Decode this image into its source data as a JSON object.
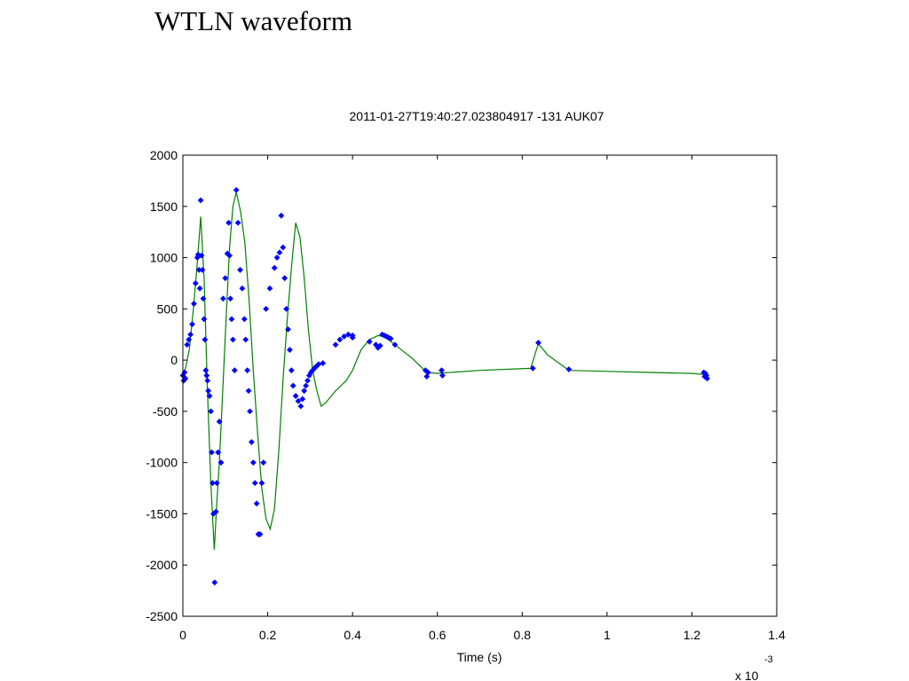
{
  "slide": {
    "title": "WTLN waveform"
  },
  "chart_data": {
    "type": "line",
    "title": "2011-01-27T19:40:27.023804917   -131  AUK07",
    "xlabel": "Time (s)",
    "ylabel": "",
    "x_exponent_label": "x 10",
    "x_exponent_power": "-3",
    "xlim": [
      0,
      1.4
    ],
    "ylim": [
      -2500,
      2000
    ],
    "xticks": [
      0,
      0.2,
      0.4,
      0.6,
      0.8,
      1,
      1.2,
      1.4
    ],
    "xtick_labels": [
      "0",
      "0.2",
      "0.4",
      "0.6",
      "0.8",
      "1",
      "1.2",
      "1.4"
    ],
    "yticks": [
      2000,
      1500,
      1000,
      500,
      0,
      -500,
      -1000,
      -1500,
      -2000,
      -2500
    ],
    "ytick_labels": [
      "2000",
      "1500",
      "1000",
      "500",
      "0",
      "-500",
      "-1000",
      "-1500",
      "-2000",
      "-2500"
    ],
    "grid": false,
    "legend": "none",
    "colors": {
      "line": "#008000",
      "markers": "#0000ff"
    },
    "series": [
      {
        "style": "line",
        "x": [
          0,
          0.005,
          0.015,
          0.025,
          0.035,
          0.042,
          0.05,
          0.058,
          0.066,
          0.074,
          0.08,
          0.086,
          0.094,
          0.102,
          0.11,
          0.118,
          0.126,
          0.136,
          0.146,
          0.156,
          0.166,
          0.176,
          0.186,
          0.196,
          0.206,
          0.216,
          0.226,
          0.236,
          0.246,
          0.256,
          0.266,
          0.276,
          0.286,
          0.296,
          0.306,
          0.316,
          0.326,
          0.336,
          0.36,
          0.385,
          0.4,
          0.42,
          0.44,
          0.46,
          0.475,
          0.5,
          0.54,
          0.575,
          0.6,
          0.7,
          0.82,
          0.838,
          0.86,
          0.91,
          1.0,
          1.1,
          1.2,
          1.23
        ],
        "y": [
          -200,
          -100,
          100,
          500,
          1000,
          1400,
          800,
          -300,
          -1200,
          -1850,
          -1400,
          -1000,
          -300,
          400,
          1100,
          1500,
          1640,
          1450,
          1150,
          600,
          -100,
          -700,
          -1250,
          -1550,
          -1650,
          -1450,
          -900,
          -200,
          400,
          900,
          1340,
          1200,
          800,
          300,
          -100,
          -300,
          -450,
          -420,
          -300,
          -200,
          -100,
          100,
          200,
          240,
          230,
          150,
          20,
          -120,
          -130,
          -100,
          -80,
          160,
          50,
          -100,
          -110,
          -120,
          -130,
          -140
        ]
      },
      {
        "style": "markers",
        "x": [
          0,
          0.002,
          0.004,
          0.006,
          0.01,
          0.014,
          0.018,
          0.022,
          0.026,
          0.03,
          0.034,
          0.036,
          0.038,
          0.04,
          0.042,
          0.044,
          0.046,
          0.048,
          0.05,
          0.052,
          0.054,
          0.056,
          0.058,
          0.06,
          0.063,
          0.066,
          0.068,
          0.07,
          0.072,
          0.075,
          0.078,
          0.08,
          0.083,
          0.086,
          0.09,
          0.095,
          0.1,
          0.105,
          0.108,
          0.11,
          0.112,
          0.115,
          0.118,
          0.122,
          0.126,
          0.13,
          0.135,
          0.14,
          0.145,
          0.148,
          0.152,
          0.155,
          0.158,
          0.162,
          0.166,
          0.17,
          0.174,
          0.178,
          0.182,
          0.186,
          0.19,
          0.196,
          0.205,
          0.216,
          0.222,
          0.228,
          0.232,
          0.236,
          0.24,
          0.244,
          0.248,
          0.252,
          0.256,
          0.26,
          0.266,
          0.272,
          0.278,
          0.282,
          0.286,
          0.29,
          0.294,
          0.298,
          0.302,
          0.306,
          0.31,
          0.315,
          0.32,
          0.33,
          0.36,
          0.37,
          0.38,
          0.39,
          0.4,
          0.4,
          0.44,
          0.455,
          0.46,
          0.465,
          0.47,
          0.475,
          0.48,
          0.485,
          0.49,
          0.5,
          0.572,
          0.575,
          0.578,
          0.61,
          0.612,
          0.825,
          0.838,
          0.91,
          1.228,
          1.23,
          1.232,
          1.234,
          1.236
        ],
        "y": [
          -150,
          -200,
          -120,
          -180,
          150,
          200,
          250,
          350,
          550,
          750,
          1000,
          1030,
          880,
          700,
          1560,
          1020,
          880,
          600,
          400,
          200,
          -100,
          -150,
          -200,
          -300,
          -350,
          -500,
          -900,
          -1200,
          -1500,
          -2170,
          -1480,
          -1200,
          -900,
          -600,
          -1000,
          600,
          800,
          1040,
          1340,
          1020,
          600,
          400,
          200,
          -100,
          1660,
          1340,
          880,
          700,
          400,
          200,
          -100,
          -300,
          -500,
          -800,
          -1000,
          -1200,
          -1400,
          -1700,
          -1700,
          -1200,
          -1000,
          500,
          700,
          900,
          1000,
          1050,
          1410,
          1100,
          800,
          500,
          300,
          100,
          -100,
          -250,
          -350,
          -400,
          -450,
          -380,
          -300,
          -250,
          -200,
          -150,
          -120,
          -100,
          -80,
          -60,
          -40,
          -30,
          150,
          200,
          230,
          250,
          240,
          220,
          180,
          150,
          120,
          140,
          250,
          240,
          230,
          220,
          210,
          150,
          -100,
          -160,
          -120,
          -100,
          -150,
          -80,
          170,
          -90,
          -120,
          -160,
          -130,
          -150,
          -180
        ]
      }
    ]
  }
}
